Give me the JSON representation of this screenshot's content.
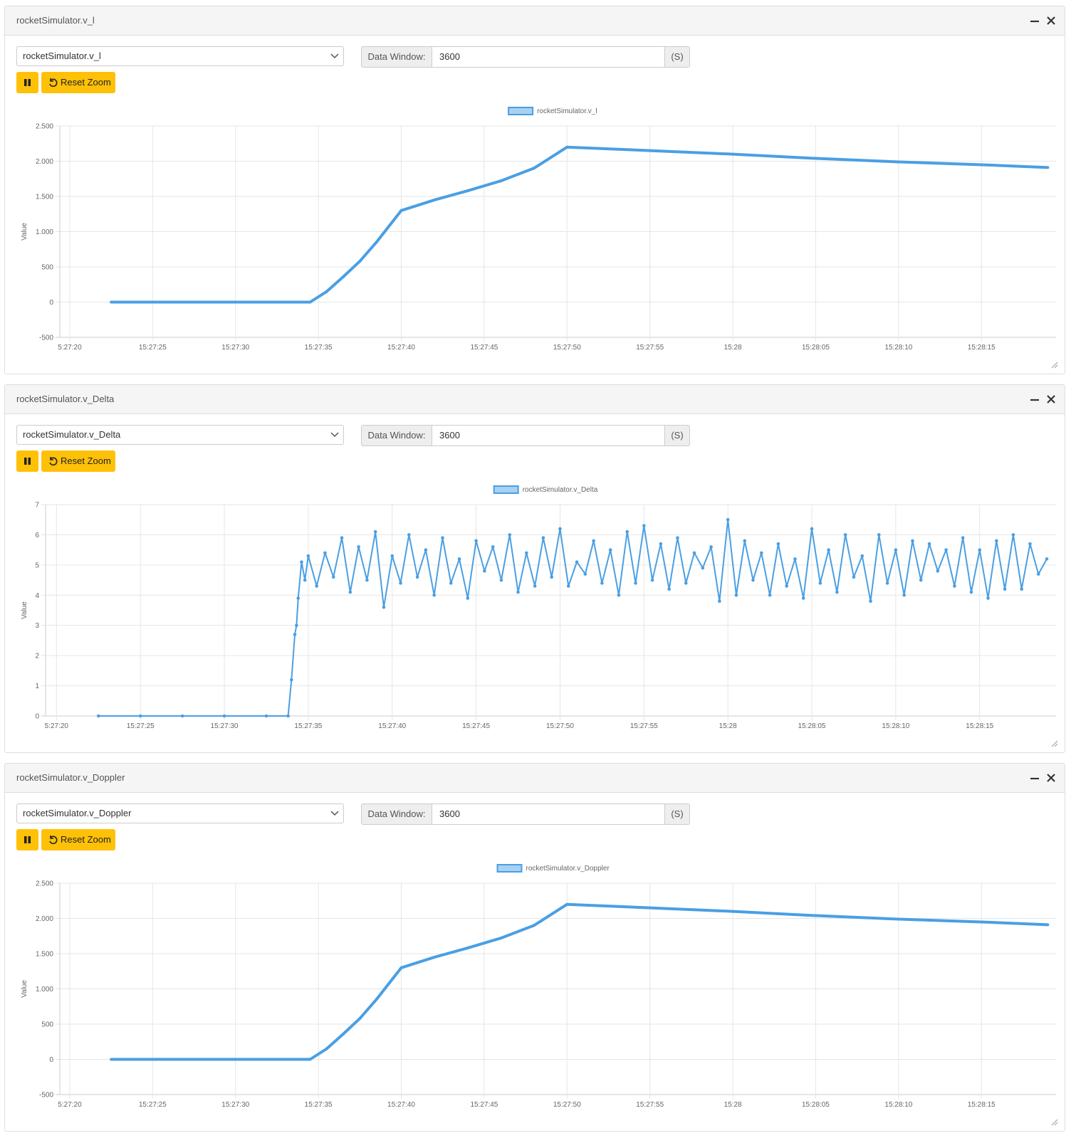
{
  "panels": [
    {
      "title": "rocketSimulator.v_l",
      "select": "rocketSimulator.v_l",
      "window_label": "Data Window:",
      "window": "3600",
      "unit": "(S)",
      "reset": "Reset Zoom",
      "chart_data": {
        "type": "line",
        "ylabel": "Value",
        "grid": true,
        "xlim": [
          "15:27:19.4",
          "15:28:19.5"
        ],
        "ylim": [
          -500,
          2500
        ],
        "yticks": [
          -500,
          0,
          500,
          {
            "value": 1000,
            "label": "1.000"
          },
          {
            "value": 1500,
            "label": "1.500"
          },
          {
            "value": 2000,
            "label": "2.000"
          },
          {
            "value": 2500,
            "label": "2.500"
          }
        ],
        "xticks": [
          {
            "value": "15:27:20",
            "label": "5:27:20"
          },
          "15:27:25",
          "15:27:30",
          "15:27:35",
          "15:27:40",
          "15:27:45",
          "15:27:50",
          "15:27:55",
          {
            "value": "15:28:00",
            "label": "15:28"
          },
          "15:28:05",
          "15:28:10",
          "15:28:15"
        ],
        "x": [
          "15:27:22.5",
          "15:27:25",
          "15:27:28",
          "15:27:31",
          "15:27:34.5",
          "15:27:35.5",
          "15:27:36.5",
          "15:27:37.5",
          "15:27:38.5",
          "15:27:39.5",
          "15:27:40",
          "15:27:42",
          "15:27:44",
          "15:27:46",
          "15:27:48",
          "15:27:50",
          "15:27:55",
          "15:28:00",
          "15:28:05",
          "15:28:10",
          "15:28:15",
          "15:28:19"
        ],
        "series": [
          {
            "name": "rocketSimulator.v_l",
            "color": "#4a9fe3",
            "values": [
              0,
              0,
              0,
              0,
              0,
              150,
              360,
              580,
              850,
              1150,
              1300,
              1450,
              1580,
              1720,
              1900,
              2200,
              2150,
              2100,
              2040,
              1990,
              1950,
              1910
            ]
          }
        ]
      }
    },
    {
      "title": "rocketSimulator.v_Delta",
      "select": "rocketSimulator.v_Delta",
      "window_label": "Data Window:",
      "window": "3600",
      "unit": "(S)",
      "reset": "Reset Zoom",
      "chart_data": {
        "type": "line",
        "ylabel": "Value",
        "grid": true,
        "xlim": [
          "15:27:19.35",
          "15:28:19.55"
        ],
        "ylim": [
          0,
          7
        ],
        "yticks": [
          0,
          1,
          2,
          3,
          4,
          5,
          6,
          7
        ],
        "xticks": [
          {
            "value": "15:27:20",
            "label": "5:27:20"
          },
          "15:27:25",
          "15:27:30",
          "15:27:35",
          "15:27:40",
          "15:27:45",
          "15:27:50",
          "15:27:55",
          {
            "value": "15:28:00",
            "label": "15:28"
          },
          "15:28:05",
          "15:28:10",
          "15:28:15"
        ],
        "x": [
          "15:27:22.5",
          "15:27:25",
          "15:27:27.5",
          "15:27:30",
          "15:27:32.5",
          "15:27:33.8",
          "15:27:34",
          "15:27:34.2",
          "15:27:34.3",
          "15:27:34.4",
          "15:27:34.6",
          "15:27:34.8",
          "15:27:35",
          "15:27:35.5",
          "15:27:36",
          "15:27:36.5",
          "15:27:37",
          "15:27:37.5",
          "15:27:38",
          "15:27:38.5",
          "15:27:39",
          "15:27:39.5",
          "15:27:40",
          "15:27:40.5",
          "15:27:41",
          "15:27:41.5",
          "15:27:42",
          "15:27:42.5",
          "15:27:43",
          "15:27:43.5",
          "15:27:44",
          "15:27:44.5",
          "15:27:45",
          "15:27:45.5",
          "15:27:46",
          "15:27:46.5",
          "15:27:47",
          "15:27:47.5",
          "15:27:48",
          "15:27:48.5",
          "15:27:49",
          "15:27:49.5",
          "15:27:50",
          "15:27:50.5",
          "15:27:51",
          "15:27:51.5",
          "15:27:52",
          "15:27:52.5",
          "15:27:53",
          "15:27:53.5",
          "15:27:54",
          "15:27:54.5",
          "15:27:55",
          "15:27:55.5",
          "15:27:56",
          "15:27:56.5",
          "15:27:57",
          "15:27:57.5",
          "15:27:58",
          "15:27:58.5",
          "15:27:59",
          "15:27:59.5",
          "15:28:00",
          "15:28:00.5",
          "15:28:01",
          "15:28:01.5",
          "15:28:02",
          "15:28:02.5",
          "15:28:03",
          "15:28:03.5",
          "15:28:04",
          "15:28:04.5",
          "15:28:05",
          "15:28:05.5",
          "15:28:06",
          "15:28:06.5",
          "15:28:07",
          "15:28:07.5",
          "15:28:08",
          "15:28:08.5",
          "15:28:09",
          "15:28:09.5",
          "15:28:10",
          "15:28:10.5",
          "15:28:11",
          "15:28:11.5",
          "15:28:12",
          "15:28:12.5",
          "15:28:13",
          "15:28:13.5",
          "15:28:14",
          "15:28:14.5",
          "15:28:15",
          "15:28:15.5",
          "15:28:16",
          "15:28:16.5",
          "15:28:17",
          "15:28:17.5",
          "15:28:18",
          "15:28:18.5",
          "15:28:19"
        ],
        "series": [
          {
            "name": "rocketSimulator.v_Delta",
            "color": "#4a9fe3",
            "values": [
              0,
              0,
              0,
              0,
              0,
              0,
              1.2,
              2.7,
              3.0,
              3.9,
              5.1,
              4.5,
              5.3,
              4.3,
              5.4,
              4.6,
              5.9,
              4.1,
              5.6,
              4.5,
              6.1,
              3.6,
              5.3,
              4.4,
              6.0,
              4.6,
              5.5,
              4.0,
              5.9,
              4.4,
              5.2,
              3.9,
              5.8,
              4.8,
              5.6,
              4.5,
              6.0,
              4.1,
              5.4,
              4.3,
              5.9,
              4.6,
              6.2,
              4.3,
              5.1,
              4.7,
              5.8,
              4.4,
              5.5,
              4.0,
              6.1,
              4.4,
              6.3,
              4.5,
              5.7,
              4.2,
              5.9,
              4.4,
              5.4,
              4.9,
              5.6,
              3.8,
              6.5,
              4.0,
              5.8,
              4.5,
              5.4,
              4.0,
              5.7,
              4.3,
              5.2,
              3.9,
              6.2,
              4.4,
              5.5,
              4.1,
              6.0,
              4.6,
              5.3,
              3.8,
              6.0,
              4.4,
              5.5,
              4.0,
              5.8,
              4.5,
              5.7,
              4.8,
              5.5,
              4.3,
              5.9,
              4.1,
              5.5,
              3.9,
              5.8,
              4.2,
              6.0,
              4.2,
              5.7,
              4.7,
              5.2
            ]
          }
        ]
      }
    },
    {
      "title": "rocketSimulator.v_Doppler",
      "select": "rocketSimulator.v_Doppler",
      "window_label": "Data Window:",
      "window": "3600",
      "unit": "(S)",
      "reset": "Reset Zoom",
      "chart_data": {
        "type": "line",
        "ylabel": "Value",
        "grid": true,
        "xlim": [
          "15:27:19.4",
          "15:28:19.5"
        ],
        "ylim": [
          -500,
          2500
        ],
        "yticks": [
          -500,
          0,
          500,
          {
            "value": 1000,
            "label": "1.000"
          },
          {
            "value": 1500,
            "label": "1.500"
          },
          {
            "value": 2000,
            "label": "2.000"
          },
          {
            "value": 2500,
            "label": "2.500"
          }
        ],
        "xticks": [
          {
            "value": "15:27:20",
            "label": "5:27:20"
          },
          "15:27:25",
          "15:27:30",
          "15:27:35",
          "15:27:40",
          "15:27:45",
          "15:27:50",
          "15:27:55",
          {
            "value": "15:28:00",
            "label": "15:28"
          },
          "15:28:05",
          "15:28:10",
          "15:28:15"
        ],
        "x": [
          "15:27:22.5",
          "15:27:25",
          "15:27:28",
          "15:27:31",
          "15:27:34.5",
          "15:27:35.5",
          "15:27:36.5",
          "15:27:37.5",
          "15:27:38.5",
          "15:27:39.5",
          "15:27:40",
          "15:27:42",
          "15:27:44",
          "15:27:46",
          "15:27:48",
          "15:27:50",
          "15:27:55",
          "15:28:00",
          "15:28:05",
          "15:28:10",
          "15:28:15",
          "15:28:19"
        ],
        "series": [
          {
            "name": "rocketSimulator.v_Doppler",
            "color": "#4a9fe3",
            "values": [
              0,
              0,
              0,
              0,
              0,
              150,
              360,
              580,
              850,
              1150,
              1300,
              1450,
              1580,
              1720,
              1900,
              2200,
              2150,
              2100,
              2040,
              1990,
              1950,
              1910
            ]
          }
        ]
      }
    }
  ]
}
